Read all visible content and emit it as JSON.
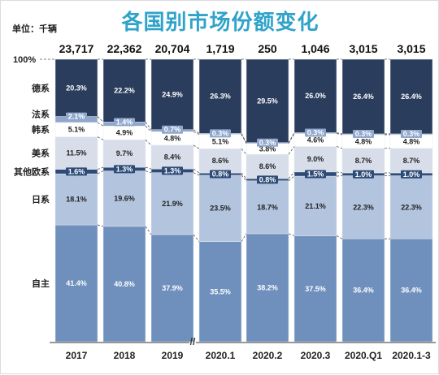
{
  "header": {
    "title": "各国别市场份额变化",
    "unit": "单位：千辆"
  },
  "colors": {
    "title": "#2fa3c9",
    "自主": "#6f8fbd",
    "日系": "#b3c4de",
    "其他欧系": "#2e4b77",
    "美系": "#d7dee9",
    "韩系": "#ffffff",
    "法系": "#8fa7cc",
    "德系": "#2b3d5d"
  },
  "chart_data": {
    "type": "bar",
    "stacked": true,
    "normalized": true,
    "title": "各国别市场份额变化",
    "unit": "单位：千辆",
    "top_label": "100%",
    "categories": [
      "2017",
      "2018",
      "2019",
      "2020.1",
      "2020.2",
      "2020.3",
      "2020.Q1",
      "2020.1-3"
    ],
    "totals": [
      "23,717",
      "22,362",
      "20,704",
      "1,719",
      "250",
      "1,046",
      "3,015",
      "3,015"
    ],
    "axis_break": "//",
    "series": [
      {
        "name": "自主",
        "values": [
          41.4,
          40.8,
          37.9,
          35.5,
          38.2,
          37.5,
          36.4,
          36.4
        ],
        "labels": [
          "41.4%",
          "40.8%",
          "37.9%",
          "35.5%",
          "38.2%",
          "37.5%",
          "36.4%",
          "36.4%"
        ]
      },
      {
        "name": "日系",
        "values": [
          18.1,
          19.6,
          21.9,
          23.5,
          18.7,
          21.1,
          22.3,
          22.3
        ],
        "labels": [
          "18.1%",
          "19.6%",
          "21.9%",
          "23.5%",
          "18.7%",
          "21.1%",
          "22.3%",
          "22.3%"
        ]
      },
      {
        "name": "其他欧系",
        "values": [
          1.6,
          1.3,
          1.3,
          0.8,
          0.8,
          1.5,
          1.0,
          1.0
        ],
        "labels": [
          "1.6%",
          "1.3%",
          "1.3%",
          "0.8%",
          "0.8%",
          "1.5%",
          "1.0%",
          "1.0%"
        ]
      },
      {
        "name": "美系",
        "values": [
          11.5,
          9.7,
          8.4,
          8.6,
          8.6,
          9.0,
          8.7,
          8.7
        ],
        "labels": [
          "11.5%",
          "9.7%",
          "8.4%",
          "8.6%",
          "8.6%",
          "9.0%",
          "8.7%",
          "8.7%"
        ]
      },
      {
        "name": "韩系",
        "values": [
          5.1,
          4.9,
          4.8,
          5.1,
          3.8,
          4.6,
          4.8,
          4.8
        ],
        "labels": [
          "5.1%",
          "4.9%",
          "4.8%",
          "5.1%",
          "3.8%",
          "4.6%",
          "4.8%",
          "4.8%"
        ]
      },
      {
        "name": "法系",
        "values": [
          2.1,
          1.4,
          0.7,
          0.3,
          0.3,
          0.3,
          0.3,
          0.3
        ],
        "labels": [
          "2.1%",
          "1.4%",
          "0.7%",
          "0.3%",
          "0.3%",
          "0.3%",
          "0.3%",
          "0.3%"
        ]
      },
      {
        "name": "德系",
        "values": [
          20.3,
          22.2,
          24.9,
          26.3,
          29.5,
          26.0,
          26.4,
          26.4
        ],
        "labels": [
          "20.3%",
          "22.2%",
          "24.9%",
          "26.3%",
          "29.5%",
          "26.0%",
          "26.4%",
          "26.4%"
        ]
      }
    ]
  }
}
